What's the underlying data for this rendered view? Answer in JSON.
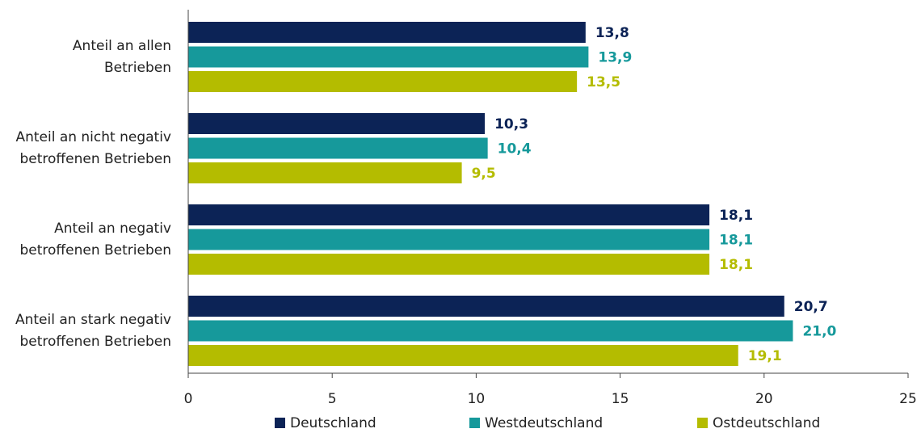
{
  "chart_data": {
    "type": "hbar",
    "categories": [
      "Anteil an allen\nBetrieben",
      "Anteil an nicht negativ\nbetroffenen Betrieben",
      "Anteil an negativ\nbetroffenen Betrieben",
      "Anteil an stark negativ\nbetroffenen Betrieben"
    ],
    "series": [
      {
        "name": "Deutschland",
        "color": "#0c2356",
        "values": [
          13.8,
          10.3,
          18.1,
          20.7
        ],
        "value_labels": [
          "13,8",
          "10,3",
          "18,1",
          "20,7"
        ]
      },
      {
        "name": "Westdeutschland",
        "color": "#16999b",
        "values": [
          13.9,
          10.4,
          18.1,
          21.0
        ],
        "value_labels": [
          "13,9",
          "10,4",
          "18,1",
          "21,0"
        ]
      },
      {
        "name": "Ostdeutschland",
        "color": "#b4bc00",
        "values": [
          13.5,
          9.5,
          18.1,
          19.1
        ],
        "value_labels": [
          "13,5",
          "9,5",
          "18,1",
          "19,1"
        ]
      }
    ],
    "xlim": [
      0,
      25
    ],
    "xticks": [
      0,
      5,
      10,
      15,
      20,
      25
    ],
    "grid": false,
    "legend": "bottom"
  }
}
